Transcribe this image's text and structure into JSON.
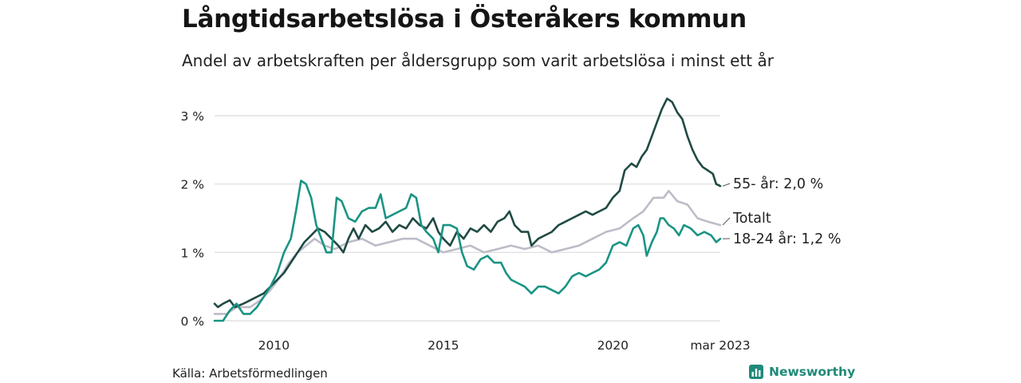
{
  "title": "Långtidsarbetslösa i Österåkers kommun",
  "subtitle": "Andel av arbetskraften per åldersgrupp som varit arbetslösa i minst ett år",
  "source": "Källa: Arbetsförmedlingen",
  "brand": "Newsworthy",
  "colors": {
    "series_55": "#1f4a43",
    "series_total": "#bdbcc8",
    "series_1824": "#1a9484",
    "grid": "#dcdcdc",
    "brand": "#1f8a78"
  },
  "chart_data": {
    "type": "line",
    "x_unit": "year",
    "xlim": [
      2008.25,
      2023.17
    ],
    "ylim": [
      0,
      3.3
    ],
    "y_ticks": [
      {
        "value": 0,
        "label": "0 %"
      },
      {
        "value": 1,
        "label": "1 %"
      },
      {
        "value": 2,
        "label": "2 %"
      },
      {
        "value": 3,
        "label": "3 %"
      }
    ],
    "x_ticks": [
      {
        "value": 2010,
        "label": "2010"
      },
      {
        "value": 2015,
        "label": "2015"
      },
      {
        "value": 2020,
        "label": "2020"
      },
      {
        "value": 2023.17,
        "label": "mar 2023"
      }
    ],
    "grid": true,
    "series": [
      {
        "name": "Totalt",
        "end_label": "Totalt",
        "color": "#bdbcc8",
        "points": [
          [
            2008.25,
            0.1
          ],
          [
            2008.6,
            0.1
          ],
          [
            2008.9,
            0.2
          ],
          [
            2009.3,
            0.2
          ],
          [
            2009.6,
            0.3
          ],
          [
            2009.9,
            0.45
          ],
          [
            2010.2,
            0.65
          ],
          [
            2010.45,
            0.85
          ],
          [
            2010.7,
            1.0
          ],
          [
            2010.95,
            1.1
          ],
          [
            2011.2,
            1.2
          ],
          [
            2011.5,
            1.1
          ],
          [
            2011.8,
            1.05
          ],
          [
            2012.2,
            1.15
          ],
          [
            2012.6,
            1.2
          ],
          [
            2013.0,
            1.1
          ],
          [
            2013.4,
            1.15
          ],
          [
            2013.8,
            1.2
          ],
          [
            2014.2,
            1.2
          ],
          [
            2014.6,
            1.1
          ],
          [
            2015.0,
            1.0
          ],
          [
            2015.4,
            1.05
          ],
          [
            2015.8,
            1.1
          ],
          [
            2016.2,
            1.0
          ],
          [
            2016.6,
            1.05
          ],
          [
            2017.0,
            1.1
          ],
          [
            2017.4,
            1.05
          ],
          [
            2017.8,
            1.1
          ],
          [
            2018.2,
            1.0
          ],
          [
            2018.6,
            1.05
          ],
          [
            2019.0,
            1.1
          ],
          [
            2019.4,
            1.2
          ],
          [
            2019.8,
            1.3
          ],
          [
            2020.2,
            1.35
          ],
          [
            2020.6,
            1.5
          ],
          [
            2020.9,
            1.6
          ],
          [
            2021.2,
            1.8
          ],
          [
            2021.5,
            1.8
          ],
          [
            2021.65,
            1.9
          ],
          [
            2021.9,
            1.75
          ],
          [
            2022.2,
            1.7
          ],
          [
            2022.5,
            1.5
          ],
          [
            2022.8,
            1.45
          ],
          [
            2023.17,
            1.4
          ]
        ]
      },
      {
        "name": "55- år",
        "end_label": "55- år: 2,0 %",
        "color": "#1f4a43",
        "points": [
          [
            2008.25,
            0.25
          ],
          [
            2008.35,
            0.2
          ],
          [
            2008.5,
            0.25
          ],
          [
            2008.7,
            0.3
          ],
          [
            2008.85,
            0.2
          ],
          [
            2009.1,
            0.25
          ],
          [
            2009.3,
            0.3
          ],
          [
            2009.5,
            0.35
          ],
          [
            2009.7,
            0.4
          ],
          [
            2009.9,
            0.5
          ],
          [
            2010.1,
            0.6
          ],
          [
            2010.3,
            0.7
          ],
          [
            2010.5,
            0.85
          ],
          [
            2010.7,
            1.0
          ],
          [
            2010.9,
            1.15
          ],
          [
            2011.1,
            1.25
          ],
          [
            2011.3,
            1.35
          ],
          [
            2011.5,
            1.3
          ],
          [
            2011.7,
            1.2
          ],
          [
            2011.9,
            1.1
          ],
          [
            2012.05,
            1.0
          ],
          [
            2012.2,
            1.2
          ],
          [
            2012.35,
            1.35
          ],
          [
            2012.5,
            1.2
          ],
          [
            2012.7,
            1.4
          ],
          [
            2012.9,
            1.3
          ],
          [
            2013.1,
            1.35
          ],
          [
            2013.3,
            1.45
          ],
          [
            2013.5,
            1.3
          ],
          [
            2013.7,
            1.4
          ],
          [
            2013.9,
            1.35
          ],
          [
            2014.1,
            1.5
          ],
          [
            2014.3,
            1.4
          ],
          [
            2014.5,
            1.35
          ],
          [
            2014.7,
            1.5
          ],
          [
            2014.85,
            1.3
          ],
          [
            2015.0,
            1.2
          ],
          [
            2015.2,
            1.1
          ],
          [
            2015.4,
            1.3
          ],
          [
            2015.6,
            1.2
          ],
          [
            2015.8,
            1.35
          ],
          [
            2016.0,
            1.3
          ],
          [
            2016.2,
            1.4
          ],
          [
            2016.4,
            1.3
          ],
          [
            2016.6,
            1.45
          ],
          [
            2016.8,
            1.5
          ],
          [
            2016.95,
            1.6
          ],
          [
            2017.1,
            1.4
          ],
          [
            2017.3,
            1.3
          ],
          [
            2017.5,
            1.3
          ],
          [
            2017.6,
            1.1
          ],
          [
            2017.8,
            1.2
          ],
          [
            2018.0,
            1.25
          ],
          [
            2018.2,
            1.3
          ],
          [
            2018.4,
            1.4
          ],
          [
            2018.6,
            1.45
          ],
          [
            2018.8,
            1.5
          ],
          [
            2019.0,
            1.55
          ],
          [
            2019.2,
            1.6
          ],
          [
            2019.4,
            1.55
          ],
          [
            2019.6,
            1.6
          ],
          [
            2019.8,
            1.65
          ],
          [
            2020.0,
            1.8
          ],
          [
            2020.2,
            1.9
          ],
          [
            2020.35,
            2.2
          ],
          [
            2020.55,
            2.3
          ],
          [
            2020.7,
            2.25
          ],
          [
            2020.85,
            2.4
          ],
          [
            2021.0,
            2.5
          ],
          [
            2021.15,
            2.7
          ],
          [
            2021.3,
            2.9
          ],
          [
            2021.45,
            3.1
          ],
          [
            2021.6,
            3.25
          ],
          [
            2021.75,
            3.2
          ],
          [
            2021.9,
            3.05
          ],
          [
            2022.05,
            2.95
          ],
          [
            2022.2,
            2.7
          ],
          [
            2022.35,
            2.5
          ],
          [
            2022.5,
            2.35
          ],
          [
            2022.65,
            2.25
          ],
          [
            2022.8,
            2.2
          ],
          [
            2022.95,
            2.15
          ],
          [
            2023.05,
            2.0
          ],
          [
            2023.17,
            1.97
          ]
        ]
      },
      {
        "name": "18-24 år",
        "end_label": "18-24 år: 1,2 %",
        "color": "#1a9484",
        "points": [
          [
            2008.25,
            0.0
          ],
          [
            2008.5,
            0.0
          ],
          [
            2008.7,
            0.15
          ],
          [
            2008.9,
            0.25
          ],
          [
            2009.1,
            0.1
          ],
          [
            2009.3,
            0.1
          ],
          [
            2009.5,
            0.2
          ],
          [
            2009.7,
            0.35
          ],
          [
            2009.9,
            0.5
          ],
          [
            2010.1,
            0.7
          ],
          [
            2010.3,
            1.0
          ],
          [
            2010.5,
            1.2
          ],
          [
            2010.65,
            1.6
          ],
          [
            2010.8,
            2.05
          ],
          [
            2010.95,
            2.0
          ],
          [
            2011.1,
            1.8
          ],
          [
            2011.25,
            1.4
          ],
          [
            2011.4,
            1.2
          ],
          [
            2011.55,
            1.0
          ],
          [
            2011.7,
            1.0
          ],
          [
            2011.85,
            1.8
          ],
          [
            2012.0,
            1.75
          ],
          [
            2012.2,
            1.5
          ],
          [
            2012.4,
            1.45
          ],
          [
            2012.6,
            1.6
          ],
          [
            2012.8,
            1.65
          ],
          [
            2013.0,
            1.65
          ],
          [
            2013.15,
            1.85
          ],
          [
            2013.3,
            1.5
          ],
          [
            2013.5,
            1.55
          ],
          [
            2013.7,
            1.6
          ],
          [
            2013.9,
            1.65
          ],
          [
            2014.05,
            1.85
          ],
          [
            2014.2,
            1.8
          ],
          [
            2014.35,
            1.4
          ],
          [
            2014.5,
            1.3
          ],
          [
            2014.7,
            1.2
          ],
          [
            2014.85,
            1.0
          ],
          [
            2015.0,
            1.4
          ],
          [
            2015.2,
            1.4
          ],
          [
            2015.4,
            1.35
          ],
          [
            2015.55,
            1.0
          ],
          [
            2015.7,
            0.8
          ],
          [
            2015.9,
            0.75
          ],
          [
            2016.1,
            0.9
          ],
          [
            2016.3,
            0.95
          ],
          [
            2016.5,
            0.85
          ],
          [
            2016.7,
            0.85
          ],
          [
            2016.85,
            0.7
          ],
          [
            2017.0,
            0.6
          ],
          [
            2017.2,
            0.55
          ],
          [
            2017.4,
            0.5
          ],
          [
            2017.6,
            0.4
          ],
          [
            2017.8,
            0.5
          ],
          [
            2018.0,
            0.5
          ],
          [
            2018.2,
            0.45
          ],
          [
            2018.4,
            0.4
          ],
          [
            2018.6,
            0.5
          ],
          [
            2018.8,
            0.65
          ],
          [
            2019.0,
            0.7
          ],
          [
            2019.2,
            0.65
          ],
          [
            2019.4,
            0.7
          ],
          [
            2019.6,
            0.75
          ],
          [
            2019.8,
            0.85
          ],
          [
            2020.0,
            1.1
          ],
          [
            2020.2,
            1.15
          ],
          [
            2020.4,
            1.1
          ],
          [
            2020.6,
            1.35
          ],
          [
            2020.75,
            1.4
          ],
          [
            2020.9,
            1.25
          ],
          [
            2021.0,
            0.95
          ],
          [
            2021.15,
            1.15
          ],
          [
            2021.3,
            1.3
          ],
          [
            2021.4,
            1.5
          ],
          [
            2021.5,
            1.5
          ],
          [
            2021.65,
            1.4
          ],
          [
            2021.8,
            1.35
          ],
          [
            2021.95,
            1.25
          ],
          [
            2022.1,
            1.4
          ],
          [
            2022.3,
            1.35
          ],
          [
            2022.5,
            1.25
          ],
          [
            2022.7,
            1.3
          ],
          [
            2022.9,
            1.25
          ],
          [
            2023.05,
            1.15
          ],
          [
            2023.17,
            1.2
          ]
        ]
      }
    ]
  }
}
